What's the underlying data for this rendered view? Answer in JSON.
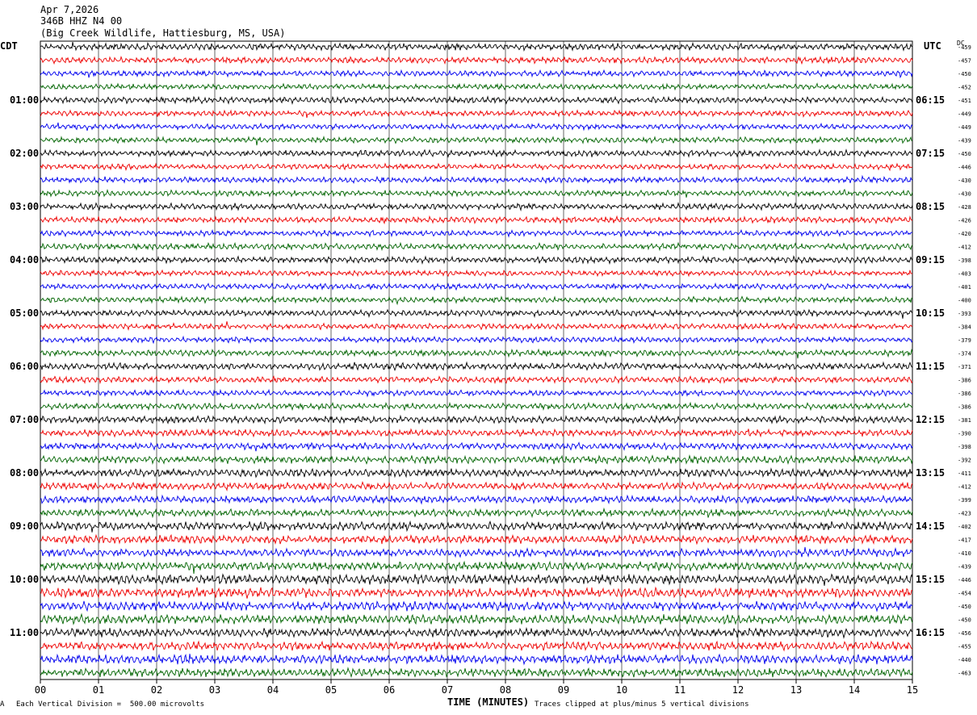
{
  "header": {
    "date": "Apr 7,2026",
    "station": "346B HHZ N4 00",
    "location": "(Big Creek Wildlife, Hattiesburg, MS, USA)"
  },
  "left_timezone": "CDT",
  "right_timezone": "UTC",
  "dc_label": "DC",
  "footer": {
    "scale_text": "Each Vertical Division =  500.00 microvolts",
    "x_title": "TIME (MINUTES)",
    "clip_text": "Traces clipped at plus/minus 5 vertical divisions",
    "corner_mark": "A"
  },
  "colors": {
    "trace_cycle": [
      "#000000",
      "#ee0000",
      "#0000ee",
      "#006400"
    ],
    "grid": "#000000",
    "background": "#ffffff"
  },
  "chart_data": {
    "type": "line",
    "title": "346B HHZ N4 00",
    "xlabel": "TIME (MINUTES)",
    "x_ticks": [
      "00",
      "01",
      "02",
      "03",
      "04",
      "05",
      "06",
      "07",
      "08",
      "09",
      "10",
      "11",
      "12",
      "13",
      "14",
      "15"
    ],
    "xlim": [
      0,
      15
    ],
    "left_hour_labels": [
      "01:00",
      "02:00",
      "03:00",
      "04:00",
      "05:00",
      "06:00",
      "07:00",
      "08:00",
      "09:00",
      "10:00",
      "11:00"
    ],
    "right_hour_labels": [
      "06:15",
      "07:15",
      "08:15",
      "09:15",
      "10:15",
      "11:15",
      "12:15",
      "13:15",
      "14:15",
      "15:15",
      "16:15"
    ],
    "trace_count": 48,
    "trace_interval_minutes": 15,
    "dc_offsets": [
      "-459",
      "-457",
      "-450",
      "-452",
      "-451",
      "-449",
      "-449",
      "-439",
      "-450",
      "-446",
      "-430",
      "-430",
      "-428",
      "-426",
      "-420",
      "-412",
      "-398",
      "-403",
      "-401",
      "-400",
      "-393",
      "-384",
      "-379",
      "-374",
      "-371",
      "-386",
      "-386",
      "-386",
      "-381",
      "-390",
      "-398",
      "-392",
      "-411",
      "-412",
      "-399",
      "-423",
      "-402",
      "-417",
      "-410",
      "-439",
      "-446",
      "-454",
      "-450",
      "-450",
      "-456",
      "-455",
      "-440",
      "-463"
    ],
    "amplitude_profile": [
      0.6,
      0.55,
      0.5,
      0.5,
      0.55,
      0.5,
      0.5,
      0.5,
      0.55,
      0.5,
      0.5,
      0.5,
      0.55,
      0.55,
      0.5,
      0.55,
      0.55,
      0.5,
      0.5,
      0.5,
      0.55,
      0.5,
      0.5,
      0.55,
      0.6,
      0.55,
      0.5,
      0.55,
      0.6,
      0.6,
      0.6,
      0.65,
      0.7,
      0.65,
      0.65,
      0.65,
      0.75,
      0.75,
      0.7,
      0.75,
      0.85,
      0.85,
      0.8,
      0.8,
      0.75,
      0.75,
      0.8,
      0.75
    ]
  }
}
